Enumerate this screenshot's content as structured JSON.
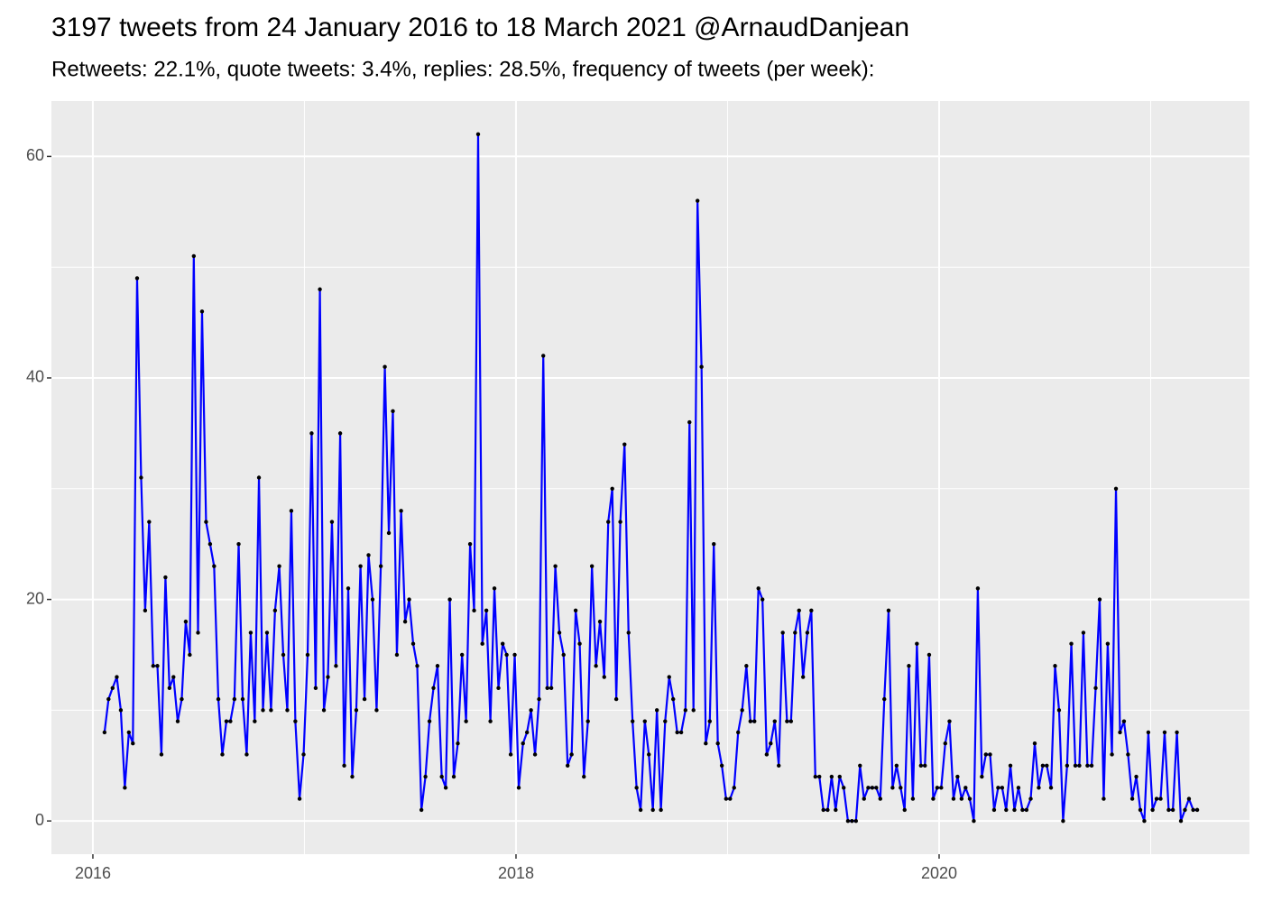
{
  "chart_data": {
    "type": "line",
    "title": "3197 tweets from 24 January 2016 to 18 March 2021 @ArnaudDanjean",
    "subtitle": "Retweets: 22.1%, quote tweets: 3.4%, replies: 28.5%, frequency of tweets (per week):",
    "x": [
      2016.055,
      2016.074,
      2016.093,
      2016.113,
      2016.132,
      2016.151,
      2016.17,
      2016.189,
      2016.209,
      2016.228,
      2016.247,
      2016.266,
      2016.285,
      2016.305,
      2016.324,
      2016.343,
      2016.362,
      2016.381,
      2016.401,
      2016.42,
      2016.439,
      2016.458,
      2016.477,
      2016.497,
      2016.516,
      2016.535,
      2016.554,
      2016.573,
      2016.593,
      2016.612,
      2016.631,
      2016.65,
      2016.669,
      2016.689,
      2016.708,
      2016.727,
      2016.746,
      2016.765,
      2016.785,
      2016.804,
      2016.823,
      2016.842,
      2016.861,
      2016.881,
      2016.9,
      2016.919,
      2016.938,
      2016.957,
      2016.977,
      2016.996,
      2017.015,
      2017.034,
      2017.053,
      2017.073,
      2017.092,
      2017.111,
      2017.13,
      2017.149,
      2017.169,
      2017.188,
      2017.207,
      2017.226,
      2017.245,
      2017.265,
      2017.284,
      2017.303,
      2017.322,
      2017.341,
      2017.361,
      2017.38,
      2017.399,
      2017.418,
      2017.437,
      2017.457,
      2017.476,
      2017.495,
      2017.514,
      2017.533,
      2017.553,
      2017.572,
      2017.591,
      2017.61,
      2017.629,
      2017.649,
      2017.668,
      2017.687,
      2017.706,
      2017.725,
      2017.745,
      2017.764,
      2017.783,
      2017.802,
      2017.821,
      2017.841,
      2017.86,
      2017.879,
      2017.898,
      2017.917,
      2017.937,
      2017.956,
      2017.975,
      2017.994,
      2018.013,
      2018.033,
      2018.052,
      2018.071,
      2018.09,
      2018.109,
      2018.129,
      2018.148,
      2018.167,
      2018.186,
      2018.205,
      2018.225,
      2018.244,
      2018.263,
      2018.282,
      2018.301,
      2018.321,
      2018.34,
      2018.359,
      2018.378,
      2018.397,
      2018.417,
      2018.436,
      2018.455,
      2018.474,
      2018.493,
      2018.513,
      2018.532,
      2018.551,
      2018.57,
      2018.589,
      2018.609,
      2018.628,
      2018.647,
      2018.666,
      2018.685,
      2018.705,
      2018.724,
      2018.743,
      2018.762,
      2018.781,
      2018.801,
      2018.82,
      2018.839,
      2018.858,
      2018.877,
      2018.897,
      2018.916,
      2018.935,
      2018.954,
      2018.973,
      2018.993,
      2019.012,
      2019.031,
      2019.05,
      2019.069,
      2019.089,
      2019.108,
      2019.127,
      2019.146,
      2019.165,
      2019.185,
      2019.204,
      2019.223,
      2019.242,
      2019.261,
      2019.281,
      2019.3,
      2019.319,
      2019.338,
      2019.357,
      2019.377,
      2019.396,
      2019.415,
      2019.434,
      2019.453,
      2019.473,
      2019.492,
      2019.511,
      2019.53,
      2019.549,
      2019.569,
      2019.588,
      2019.607,
      2019.626,
      2019.645,
      2019.665,
      2019.684,
      2019.703,
      2019.722,
      2019.741,
      2019.761,
      2019.78,
      2019.799,
      2019.818,
      2019.837,
      2019.857,
      2019.876,
      2019.895,
      2019.914,
      2019.933,
      2019.953,
      2019.972,
      2019.991,
      2020.01,
      2020.029,
      2020.049,
      2020.068,
      2020.087,
      2020.106,
      2020.125,
      2020.145,
      2020.164,
      2020.183,
      2020.202,
      2020.221,
      2020.241,
      2020.26,
      2020.279,
      2020.298,
      2020.317,
      2020.337,
      2020.356,
      2020.375,
      2020.394,
      2020.413,
      2020.433,
      2020.452,
      2020.471,
      2020.49,
      2020.509,
      2020.529,
      2020.548,
      2020.567,
      2020.586,
      2020.605,
      2020.625,
      2020.644,
      2020.663,
      2020.682,
      2020.701,
      2020.721,
      2020.74,
      2020.759,
      2020.778,
      2020.797,
      2020.817,
      2020.836,
      2020.855,
      2020.874,
      2020.893,
      2020.913,
      2020.932,
      2020.951,
      2020.97,
      2020.989,
      2021.009,
      2021.028,
      2021.047,
      2021.066,
      2021.085,
      2021.105,
      2021.124,
      2021.143,
      2021.162,
      2021.181,
      2021.201,
      2021.22
    ],
    "series": [
      {
        "color": "#0000ff",
        "marker_color": "#000000",
        "values": [
          8,
          11,
          12,
          13,
          10,
          3,
          8,
          7,
          49,
          31,
          19,
          27,
          14,
          14,
          6,
          22,
          12,
          13,
          9,
          11,
          18,
          15,
          51,
          17,
          46,
          27,
          25,
          23,
          11,
          6,
          9,
          9,
          11,
          25,
          11,
          6,
          17,
          9,
          31,
          10,
          17,
          10,
          19,
          23,
          15,
          10,
          28,
          9,
          2,
          6,
          15,
          35,
          12,
          48,
          10,
          13,
          27,
          14,
          35,
          5,
          21,
          4,
          10,
          23,
          11,
          24,
          20,
          10,
          23,
          41,
          26,
          37,
          15,
          28,
          18,
          20,
          16,
          14,
          1,
          4,
          9,
          12,
          14,
          4,
          3,
          20,
          4,
          7,
          15,
          9,
          25,
          19,
          62,
          16,
          19,
          9,
          21,
          12,
          16,
          15,
          6,
          15,
          3,
          7,
          8,
          10,
          6,
          11,
          42,
          12,
          12,
          23,
          17,
          15,
          5,
          6,
          19,
          16,
          4,
          9,
          23,
          14,
          18,
          13,
          27,
          30,
          11,
          27,
          34,
          17,
          9,
          3,
          1,
          9,
          6,
          1,
          10,
          1,
          9,
          13,
          11,
          8,
          8,
          10,
          36,
          10,
          56,
          41,
          7,
          9,
          25,
          7,
          5,
          2,
          2,
          3,
          8,
          10,
          14,
          9,
          9,
          21,
          20,
          6,
          7,
          9,
          5,
          17,
          9,
          9,
          17,
          19,
          13,
          17,
          19,
          4,
          4,
          1,
          1,
          4,
          1,
          4,
          3,
          0,
          0,
          0,
          5,
          2,
          3,
          3,
          3,
          2,
          11,
          19,
          3,
          5,
          3,
          1,
          14,
          2,
          16,
          5,
          5,
          15,
          2,
          3,
          3,
          7,
          9,
          2,
          4,
          2,
          3,
          2,
          0,
          21,
          4,
          6,
          6,
          1,
          3,
          3,
          1,
          5,
          1,
          3,
          1,
          1,
          2,
          7,
          3,
          5,
          5,
          3,
          14,
          10,
          0,
          5,
          16,
          5,
          5,
          17,
          5,
          5,
          12,
          20,
          2,
          16,
          6,
          30,
          8,
          9,
          6,
          2,
          4,
          1,
          0,
          8,
          1,
          2,
          2,
          8,
          1,
          1,
          8,
          0,
          1,
          2,
          1,
          1
        ]
      }
    ],
    "xlim": [
      2015.804,
      2021.467
    ],
    "xticks": [
      2016,
      2018,
      2020
    ],
    "ylim": [
      -3,
      65
    ],
    "yticks": [
      0,
      20,
      40,
      60
    ],
    "grid": true,
    "minor_grid": true
  }
}
